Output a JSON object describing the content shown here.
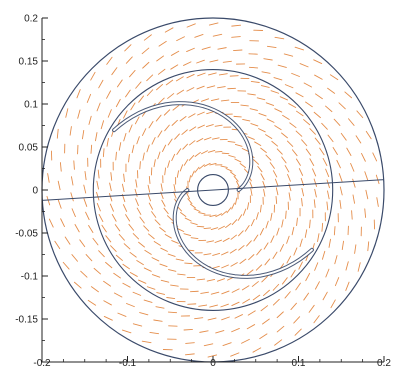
{
  "chart_data": {
    "type": "vector-field",
    "title": "",
    "xlabel": "",
    "ylabel": "",
    "xlim": [
      -0.2,
      0.2
    ],
    "ylim": [
      -0.2,
      0.2
    ],
    "x_ticks": [
      -0.2,
      -0.1,
      0,
      0.1,
      0.2
    ],
    "x_tick_labels": [
      "-0.2",
      "-0.1",
      "0",
      "0.1",
      "0.2"
    ],
    "y_ticks": [
      0.2,
      0.15,
      0.1,
      0.05,
      0,
      -0.05,
      -0.1,
      -0.15
    ],
    "y_tick_labels": [
      "0.2",
      "0.15",
      "0.1",
      "0.05",
      "0",
      "-0.05",
      "-0.1",
      "-0.15"
    ],
    "grid": false,
    "vector_color": "#e07a2c",
    "boundary_color": "#3a4a6a",
    "boundaries": {
      "outer_radius": 0.2,
      "middle_radius": 0.14,
      "inner_hub_radius": 0.018,
      "blades": [
        {
          "start_angle_deg": 0,
          "curve": "spiral"
        },
        {
          "start_angle_deg": 180,
          "curve": "spiral"
        }
      ],
      "horizontal_line": {
        "x_from": -0.2,
        "x_to": 0.2,
        "y_at_left": -0.012,
        "y_at_right": 0.012
      }
    },
    "field": {
      "description_type": "swirl",
      "rotation": "counterclockwise",
      "rings": [
        {
          "r": 0.03,
          "count": 28
        },
        {
          "r": 0.045,
          "count": 34
        },
        {
          "r": 0.06,
          "count": 40
        },
        {
          "r": 0.075,
          "count": 46
        },
        {
          "r": 0.09,
          "count": 52
        },
        {
          "r": 0.105,
          "count": 56
        },
        {
          "r": 0.12,
          "count": 62
        },
        {
          "r": 0.135,
          "count": 66
        },
        {
          "r": 0.15,
          "count": 60
        },
        {
          "r": 0.165,
          "count": 56
        },
        {
          "r": 0.18,
          "count": 52
        },
        {
          "r": 0.193,
          "count": 46
        }
      ]
    }
  }
}
